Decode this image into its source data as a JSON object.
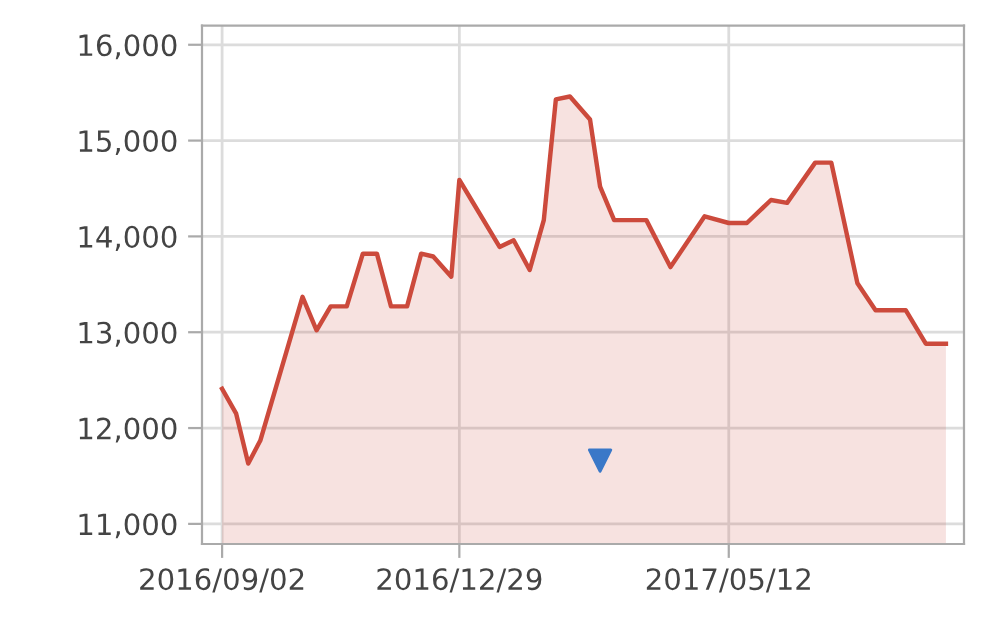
{
  "chart_data": {
    "type": "area",
    "xlim": [
      "2016-08-23",
      "2017-09-06"
    ],
    "ylim": [
      10790,
      16200
    ],
    "xticks": [
      {
        "value": "2016-09-02",
        "label": "2016/09/02"
      },
      {
        "value": "2016-12-29",
        "label": "2016/12/29"
      },
      {
        "value": "2017-05-12",
        "label": "2017/05/12"
      }
    ],
    "yticks": [
      {
        "value": 11000,
        "label": "11,000"
      },
      {
        "value": 12000,
        "label": "12,000"
      },
      {
        "value": 13000,
        "label": "13,000"
      },
      {
        "value": 14000,
        "label": "14,000"
      },
      {
        "value": 15000,
        "label": "15,000"
      },
      {
        "value": 16000,
        "label": "16,000"
      }
    ],
    "grid": true,
    "series": [
      {
        "color": "#cc4a3c",
        "x": [
          "2016-09-02",
          "2016-09-09",
          "2016-09-15",
          "2016-09-21",
          "2016-10-12",
          "2016-10-19",
          "2016-10-26",
          "2016-11-03",
          "2016-11-11",
          "2016-11-18",
          "2016-11-25",
          "2016-12-03",
          "2016-12-10",
          "2016-12-16",
          "2016-12-25",
          "2016-12-29",
          "2017-01-04",
          "2017-01-18",
          "2017-01-25",
          "2017-02-02",
          "2017-02-09",
          "2017-02-15",
          "2017-02-22",
          "2017-03-04",
          "2017-03-09",
          "2017-03-16",
          "2017-04-01",
          "2017-04-13",
          "2017-04-30",
          "2017-05-12",
          "2017-05-21",
          "2017-06-02",
          "2017-06-10",
          "2017-06-24",
          "2017-07-02",
          "2017-07-15",
          "2017-07-24",
          "2017-08-08",
          "2017-08-18",
          "2017-08-28"
        ],
        "values": [
          12410,
          12150,
          11630,
          11870,
          13370,
          13020,
          13270,
          13270,
          13820,
          13820,
          13270,
          13270,
          13820,
          13790,
          13580,
          14590,
          14380,
          13890,
          13960,
          13650,
          14170,
          15430,
          15460,
          15220,
          14520,
          14170,
          14170,
          13680,
          14210,
          14140,
          14140,
          14380,
          14350,
          14770,
          14770,
          13510,
          13230,
          13230,
          12880,
          12880
        ]
      },
      {
        "type": "scatter",
        "color": "#3a78c8",
        "marker": "triangle",
        "x": [
          "2017-03-09"
        ],
        "values": [
          11660
        ]
      }
    ]
  }
}
